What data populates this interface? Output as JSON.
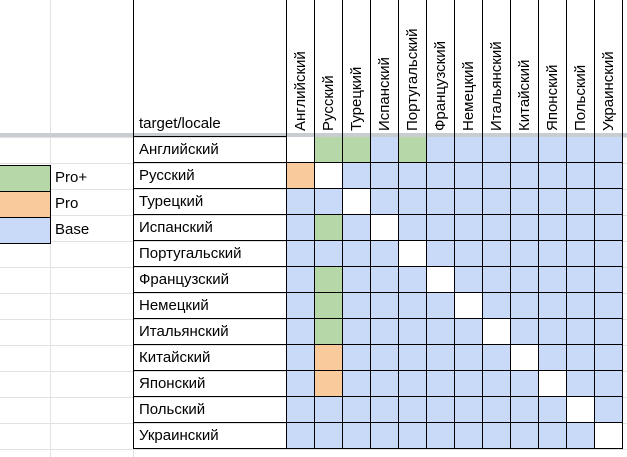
{
  "colors": {
    "pro_plus": "#b6d7a8",
    "pro": "#f9cb9c",
    "base": "#c9daf8",
    "none": "#ffffff"
  },
  "corner_label": "target/locale",
  "columns": [
    "Английский",
    "Русский",
    "Турецкий",
    "Испанский",
    "Португальский",
    "Французский",
    "Немецкий",
    "Итальянский",
    "Китайский",
    "Японский",
    "Польский",
    "Украинский"
  ],
  "rows": [
    {
      "label": "Английский",
      "cells": [
        "none",
        "pro_plus",
        "pro_plus",
        "base",
        "pro_plus",
        "base",
        "base",
        "base",
        "base",
        "base",
        "base",
        "base"
      ]
    },
    {
      "label": "Русский",
      "cells": [
        "pro",
        "none",
        "base",
        "base",
        "base",
        "base",
        "base",
        "base",
        "base",
        "base",
        "base",
        "base"
      ]
    },
    {
      "label": "Турецкий",
      "cells": [
        "base",
        "base",
        "none",
        "base",
        "base",
        "base",
        "base",
        "base",
        "base",
        "base",
        "base",
        "base"
      ]
    },
    {
      "label": "Испанский",
      "cells": [
        "base",
        "pro_plus",
        "base",
        "none",
        "base",
        "base",
        "base",
        "base",
        "base",
        "base",
        "base",
        "base"
      ]
    },
    {
      "label": "Португальский",
      "cells": [
        "base",
        "base",
        "base",
        "base",
        "none",
        "base",
        "base",
        "base",
        "base",
        "base",
        "base",
        "base"
      ]
    },
    {
      "label": "Французский",
      "cells": [
        "base",
        "pro_plus",
        "base",
        "base",
        "base",
        "none",
        "base",
        "base",
        "base",
        "base",
        "base",
        "base"
      ]
    },
    {
      "label": "Немецкий",
      "cells": [
        "base",
        "pro_plus",
        "base",
        "base",
        "base",
        "base",
        "none",
        "base",
        "base",
        "base",
        "base",
        "base"
      ]
    },
    {
      "label": "Итальянский",
      "cells": [
        "base",
        "pro_plus",
        "base",
        "base",
        "base",
        "base",
        "base",
        "none",
        "base",
        "base",
        "base",
        "base"
      ]
    },
    {
      "label": "Китайский",
      "cells": [
        "base",
        "pro",
        "base",
        "base",
        "base",
        "base",
        "base",
        "base",
        "none",
        "base",
        "base",
        "base"
      ]
    },
    {
      "label": "Японский",
      "cells": [
        "base",
        "pro",
        "base",
        "base",
        "base",
        "base",
        "base",
        "base",
        "base",
        "none",
        "base",
        "base"
      ]
    },
    {
      "label": "Польский",
      "cells": [
        "base",
        "base",
        "base",
        "base",
        "base",
        "base",
        "base",
        "base",
        "base",
        "base",
        "none",
        "base"
      ]
    },
    {
      "label": "Украинский",
      "cells": [
        "base",
        "base",
        "base",
        "base",
        "base",
        "base",
        "base",
        "base",
        "base",
        "base",
        "base",
        "none"
      ]
    }
  ],
  "legend": [
    {
      "key": "pro_plus",
      "label": "Pro+"
    },
    {
      "key": "pro",
      "label": "Pro"
    },
    {
      "key": "base",
      "label": "Base"
    }
  ]
}
